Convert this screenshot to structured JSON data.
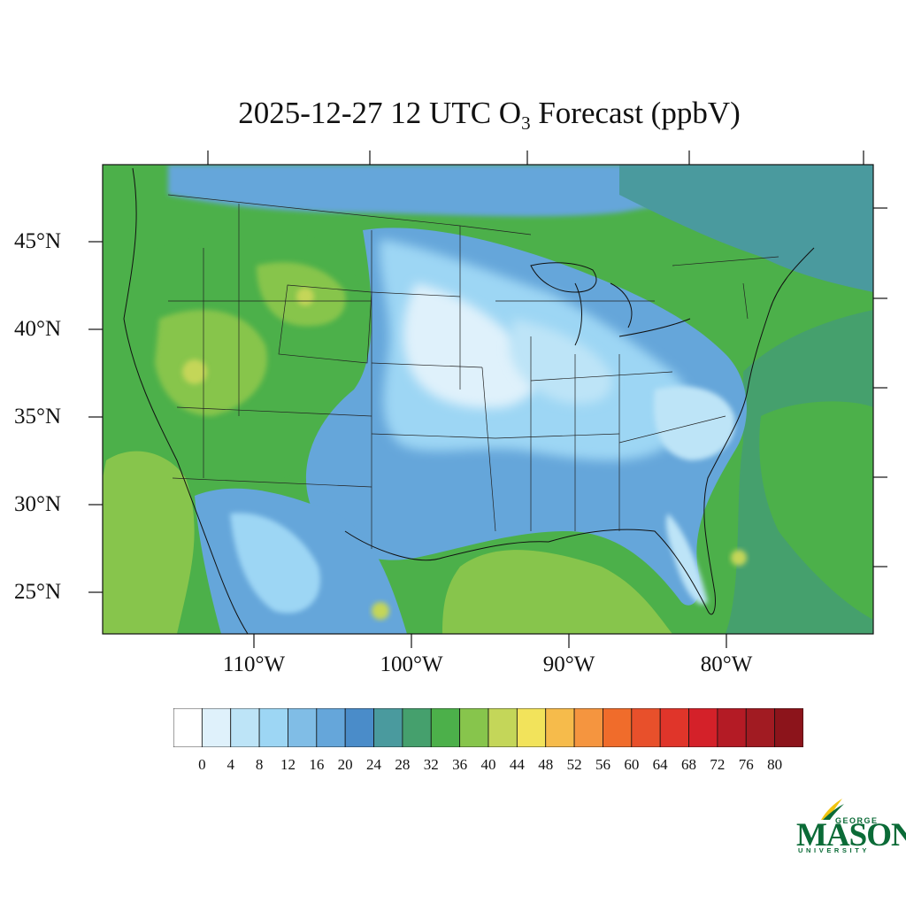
{
  "title": {
    "prefix": "2025-12-27 12 UTC O",
    "subscript": "3",
    "suffix": " Forecast (ppbV)"
  },
  "lat_labels": [
    "45°N",
    "40°N",
    "35°N",
    "30°N",
    "25°N"
  ],
  "lon_labels": [
    "110°W",
    "100°W",
    "90°W",
    "80°W"
  ],
  "colorbar": {
    "ticks": [
      "0",
      "4",
      "8",
      "12",
      "16",
      "20",
      "24",
      "28",
      "32",
      "36",
      "40",
      "44",
      "48",
      "52",
      "56",
      "60",
      "64",
      "68",
      "72",
      "76",
      "80"
    ],
    "colors": [
      "#ffffff",
      "#dff1fb",
      "#bde4f7",
      "#9dd6f4",
      "#80bde6",
      "#65a6da",
      "#4a8cc9",
      "#4a9a9e",
      "#45a06d",
      "#4cb04a",
      "#87c54c",
      "#c4d659",
      "#f2e35b",
      "#f6bb4b",
      "#f5953f",
      "#f06c2b",
      "#e8502b",
      "#e0352a",
      "#d42129",
      "#b41b25",
      "#a11b22",
      "#8c141b"
    ]
  },
  "colors": {
    "ocean": "#4cb04a",
    "land_low": "#65a6da",
    "logo_green": "#0b6b37",
    "logo_gold": "#f1c40f"
  },
  "logo": {
    "top": "GEORGE",
    "main": "MASON",
    "bottom": "UNIVERSITY"
  }
}
